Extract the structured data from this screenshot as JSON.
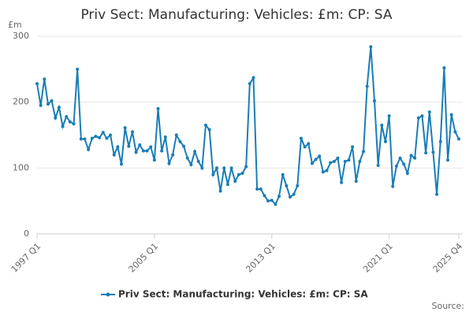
{
  "chart_data": {
    "type": "line",
    "title": "Priv Sect: Manufacturing: Vehicles: £m: CP: SA",
    "y_label": "£m",
    "source": "Source:",
    "categories": [
      "1997 Q1",
      null,
      null,
      null,
      null,
      null,
      null,
      null,
      null,
      null,
      null,
      null,
      null,
      null,
      null,
      null,
      null,
      null,
      null,
      null,
      null,
      null,
      null,
      null,
      null,
      null,
      null,
      null,
      null,
      null,
      null,
      null,
      "2005 Q1",
      null,
      null,
      null,
      null,
      null,
      null,
      null,
      null,
      null,
      null,
      null,
      null,
      null,
      null,
      null,
      null,
      null,
      null,
      null,
      null,
      null,
      null,
      null,
      null,
      null,
      null,
      null,
      null,
      null,
      null,
      null,
      "2013 Q1",
      null,
      null,
      null,
      null,
      null,
      null,
      null,
      null,
      null,
      null,
      null,
      null,
      null,
      null,
      null,
      null,
      null,
      null,
      null,
      null,
      null,
      null,
      null,
      null,
      null,
      null,
      null,
      null,
      null,
      null,
      null,
      "2021 Q1",
      null,
      null,
      null,
      null,
      null,
      null,
      null,
      null,
      null,
      null,
      null,
      null,
      null,
      null,
      null,
      null,
      null,
      null,
      "2025 Q4"
    ],
    "series": [
      {
        "name": "Priv Sect: Manufacturing: Vehicles: £m: CP: SA",
        "color": "#1a7db6",
        "values": [
          228,
          195,
          235,
          197,
          202,
          176,
          192,
          163,
          178,
          170,
          167,
          250,
          144,
          144,
          128,
          145,
          148,
          146,
          154,
          145,
          150,
          120,
          132,
          106,
          161,
          133,
          155,
          124,
          135,
          126,
          126,
          132,
          112,
          190,
          126,
          147,
          107,
          120,
          150,
          140,
          133,
          115,
          105,
          125,
          110,
          100,
          165,
          158,
          90,
          100,
          65,
          100,
          75,
          100,
          80,
          90,
          92,
          102,
          228,
          237,
          68,
          68,
          58,
          50,
          51,
          45,
          57,
          90,
          73,
          56,
          60,
          73,
          145,
          132,
          137,
          107,
          113,
          118,
          94,
          96,
          108,
          110,
          115,
          78,
          110,
          112,
          132,
          80,
          110,
          125,
          224,
          284,
          202,
          104,
          165,
          140,
          179,
          72,
          103,
          115,
          106,
          92,
          119,
          115,
          176,
          179,
          123,
          185,
          124,
          60,
          140,
          252,
          112,
          181,
          155,
          144
        ]
      }
    ],
    "ylim": [
      0,
      300
    ],
    "yticks": [
      0,
      100,
      200,
      300
    ],
    "grid": true,
    "legend": "bottom"
  }
}
